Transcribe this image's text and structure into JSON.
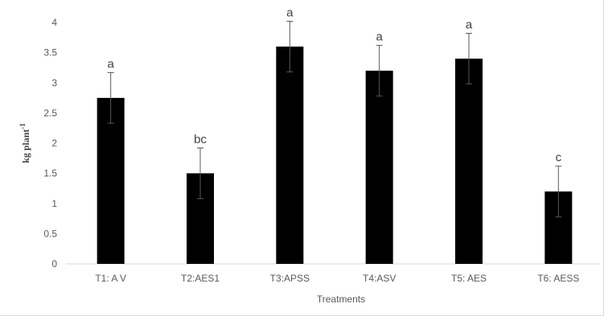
{
  "chart_data": {
    "type": "bar",
    "categories": [
      "T1: A V",
      "T2:AES1",
      "T3:APSS",
      "T4:ASV",
      "T5: AES",
      "T6: AESS"
    ],
    "values": [
      2.75,
      1.5,
      3.6,
      3.2,
      3.4,
      1.2
    ],
    "errors": [
      0.42,
      0.42,
      0.42,
      0.42,
      0.42,
      0.42
    ],
    "significance_letters": [
      "a",
      "bc",
      "a",
      "a",
      "a",
      "c"
    ],
    "title": "",
    "xlabel": "Treatments",
    "ylabel": "kg plant",
    "ylabel_superscript": "-1",
    "ylim": [
      0,
      4
    ],
    "yticks": [
      "0",
      "0.5",
      "1",
      "1.5",
      "2",
      "2.5",
      "3",
      "3.5",
      "4"
    ],
    "grid": false,
    "legend": "none",
    "bar_color": "#000000",
    "axis_color": "#d9d9d9",
    "text_color": "#595959"
  }
}
